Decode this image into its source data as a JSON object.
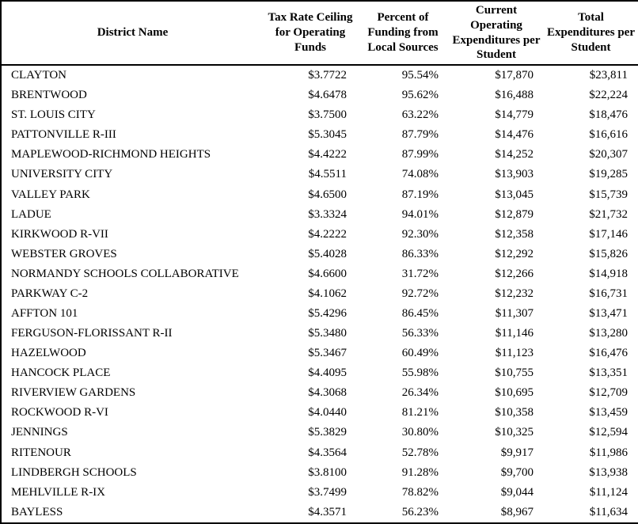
{
  "colors": {
    "text": "#000000",
    "border": "#000000",
    "background": "#ffffff"
  },
  "chart_data": {
    "type": "table",
    "columns": [
      "District Name",
      "Tax Rate Ceiling for Operating Funds",
      "Percent of Funding from Local Sources",
      "Current Operating Expenditures per Student",
      "Total Expenditures per Student"
    ],
    "rows": [
      [
        "CLAYTON",
        "$3.7722",
        "95.54%",
        "$17,870",
        "$23,811"
      ],
      [
        "BRENTWOOD",
        "$4.6478",
        "95.62%",
        "$16,488",
        "$22,224"
      ],
      [
        "ST. LOUIS CITY",
        "$3.7500",
        "63.22%",
        "$14,779",
        "$18,476"
      ],
      [
        "PATTONVILLE R-III",
        "$5.3045",
        "87.79%",
        "$14,476",
        "$16,616"
      ],
      [
        "MAPLEWOOD-RICHMOND HEIGHTS",
        "$4.4222",
        "87.99%",
        "$14,252",
        "$20,307"
      ],
      [
        "UNIVERSITY CITY",
        "$4.5511",
        "74.08%",
        "$13,903",
        "$19,285"
      ],
      [
        "VALLEY PARK",
        "$4.6500",
        "87.19%",
        "$13,045",
        "$15,739"
      ],
      [
        "LADUE",
        "$3.3324",
        "94.01%",
        "$12,879",
        "$21,732"
      ],
      [
        "KIRKWOOD R-VII",
        "$4.2222",
        "92.30%",
        "$12,358",
        "$17,146"
      ],
      [
        "WEBSTER GROVES",
        "$5.4028",
        "86.33%",
        "$12,292",
        "$15,826"
      ],
      [
        "NORMANDY SCHOOLS COLLABORATIVE",
        "$4.6600",
        "31.72%",
        "$12,266",
        "$14,918"
      ],
      [
        "PARKWAY C-2",
        "$4.1062",
        "92.72%",
        "$12,232",
        "$16,731"
      ],
      [
        "AFFTON 101",
        "$5.4296",
        "86.45%",
        "$11,307",
        "$13,471"
      ],
      [
        "FERGUSON-FLORISSANT R-II",
        "$5.3480",
        "56.33%",
        "$11,146",
        "$13,280"
      ],
      [
        "HAZELWOOD",
        "$5.3467",
        "60.49%",
        "$11,123",
        "$16,476"
      ],
      [
        "HANCOCK PLACE",
        "$4.4095",
        "55.98%",
        "$10,755",
        "$13,351"
      ],
      [
        "RIVERVIEW GARDENS",
        "$4.3068",
        "26.34%",
        "$10,695",
        "$12,709"
      ],
      [
        "ROCKWOOD R-VI",
        "$4.0440",
        "81.21%",
        "$10,358",
        "$13,459"
      ],
      [
        "JENNINGS",
        "$5.3829",
        "30.80%",
        "$10,325",
        "$12,594"
      ],
      [
        "RITENOUR",
        "$4.3564",
        "52.78%",
        "$9,917",
        "$11,986"
      ],
      [
        "LINDBERGH SCHOOLS",
        "$3.8100",
        "91.28%",
        "$9,700",
        "$13,938"
      ],
      [
        "MEHLVILLE R-IX",
        "$3.7499",
        "78.82%",
        "$9,044",
        "$11,124"
      ],
      [
        "BAYLESS",
        "$4.3571",
        "56.23%",
        "$8,967",
        "$11,634"
      ]
    ]
  }
}
